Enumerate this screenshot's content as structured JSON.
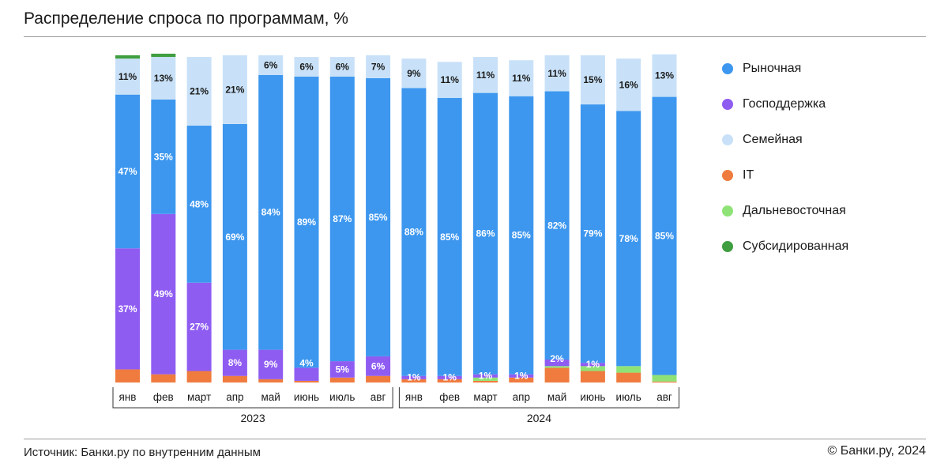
{
  "title": "Распределение спроса по программам, %",
  "source": "Источник: Банки.ру по внутренним данным",
  "copyright": "© Банки.ру, 2024",
  "colors": {
    "market": "#3d97ef",
    "gov": "#8f5cf2",
    "family": "#c8e1f8",
    "it": "#ef7b3e",
    "fareast": "#8fe376",
    "subsidized": "#3f9e3f"
  },
  "chart_data": {
    "type": "bar",
    "stacked": true,
    "title": "Распределение спроса по программам, %",
    "ylim": [
      0,
      100
    ],
    "categories": [
      "янв",
      "фев",
      "март",
      "апр",
      "май",
      "июнь",
      "июль",
      "авг",
      "янв",
      "фев",
      "март",
      "апр",
      "май",
      "июнь",
      "июль",
      "авг"
    ],
    "year_groups": [
      {
        "label": "2023",
        "start": 0,
        "end": 7
      },
      {
        "label": "2024",
        "start": 8,
        "end": 15
      }
    ],
    "series": [
      {
        "name": "IT",
        "key": "it",
        "values": [
          4,
          2.5,
          3.5,
          2,
          1,
          0.5,
          1.5,
          2,
          1,
          1,
          0.5,
          1.5,
          4.5,
          3.5,
          3,
          0.3
        ]
      },
      {
        "name": "Дальневосточная",
        "key": "fareast",
        "values": [
          0,
          0,
          0,
          0,
          0,
          0,
          0,
          0,
          0,
          0,
          1,
          0,
          0.5,
          1.5,
          2,
          2
        ]
      },
      {
        "name": "Господдержка",
        "key": "gov",
        "values": [
          37,
          49,
          27,
          8,
          9,
          4,
          5,
          6,
          1,
          1,
          1,
          1,
          2,
          1,
          0,
          0
        ]
      },
      {
        "name": "Рыночная",
        "key": "market",
        "values": [
          47,
          35,
          48,
          69,
          84,
          89,
          87,
          85,
          88,
          85,
          86,
          85,
          82,
          79,
          78,
          85
        ]
      },
      {
        "name": "Семейная",
        "key": "family",
        "values": [
          11,
          13,
          21,
          21,
          6,
          6,
          6,
          7,
          9,
          11,
          11,
          11,
          11,
          15,
          16,
          13
        ]
      },
      {
        "name": "Субсидированная",
        "key": "subsidized",
        "values": [
          1,
          1,
          0,
          0,
          0,
          0,
          0,
          0,
          0,
          0,
          0,
          0,
          0,
          0,
          0,
          0
        ]
      }
    ],
    "data_labels": [
      {
        "series": "family",
        "labels": [
          "11%",
          "13%",
          "21%",
          "21%",
          "6%",
          "6%",
          "6%",
          "7%",
          "9%",
          "11%",
          "11%",
          "11%",
          "11%",
          "15%",
          "16%",
          "13%"
        ]
      },
      {
        "series": "market",
        "labels": [
          "47%",
          "35%",
          "48%",
          "69%",
          "84%",
          "89%",
          "87%",
          "85%",
          "88%",
          "85%",
          "86%",
          "85%",
          "82%",
          "79%",
          "78%",
          "85%"
        ]
      },
      {
        "series": "gov",
        "labels": [
          "37%",
          "49%",
          "27%",
          "8%",
          "9%",
          "4%",
          "5%",
          "6%",
          "1%",
          "1%",
          "1%",
          "1%",
          "2%",
          "1%",
          "",
          ""
        ]
      }
    ],
    "legend": [
      {
        "name": "Рыночная",
        "key": "market"
      },
      {
        "name": "Господдержка",
        "key": "gov"
      },
      {
        "name": "Семейная",
        "key": "family"
      },
      {
        "name": "IT",
        "key": "it"
      },
      {
        "name": "Дальневосточная",
        "key": "fareast"
      },
      {
        "name": "Субсидированная",
        "key": "subsidized"
      }
    ]
  }
}
